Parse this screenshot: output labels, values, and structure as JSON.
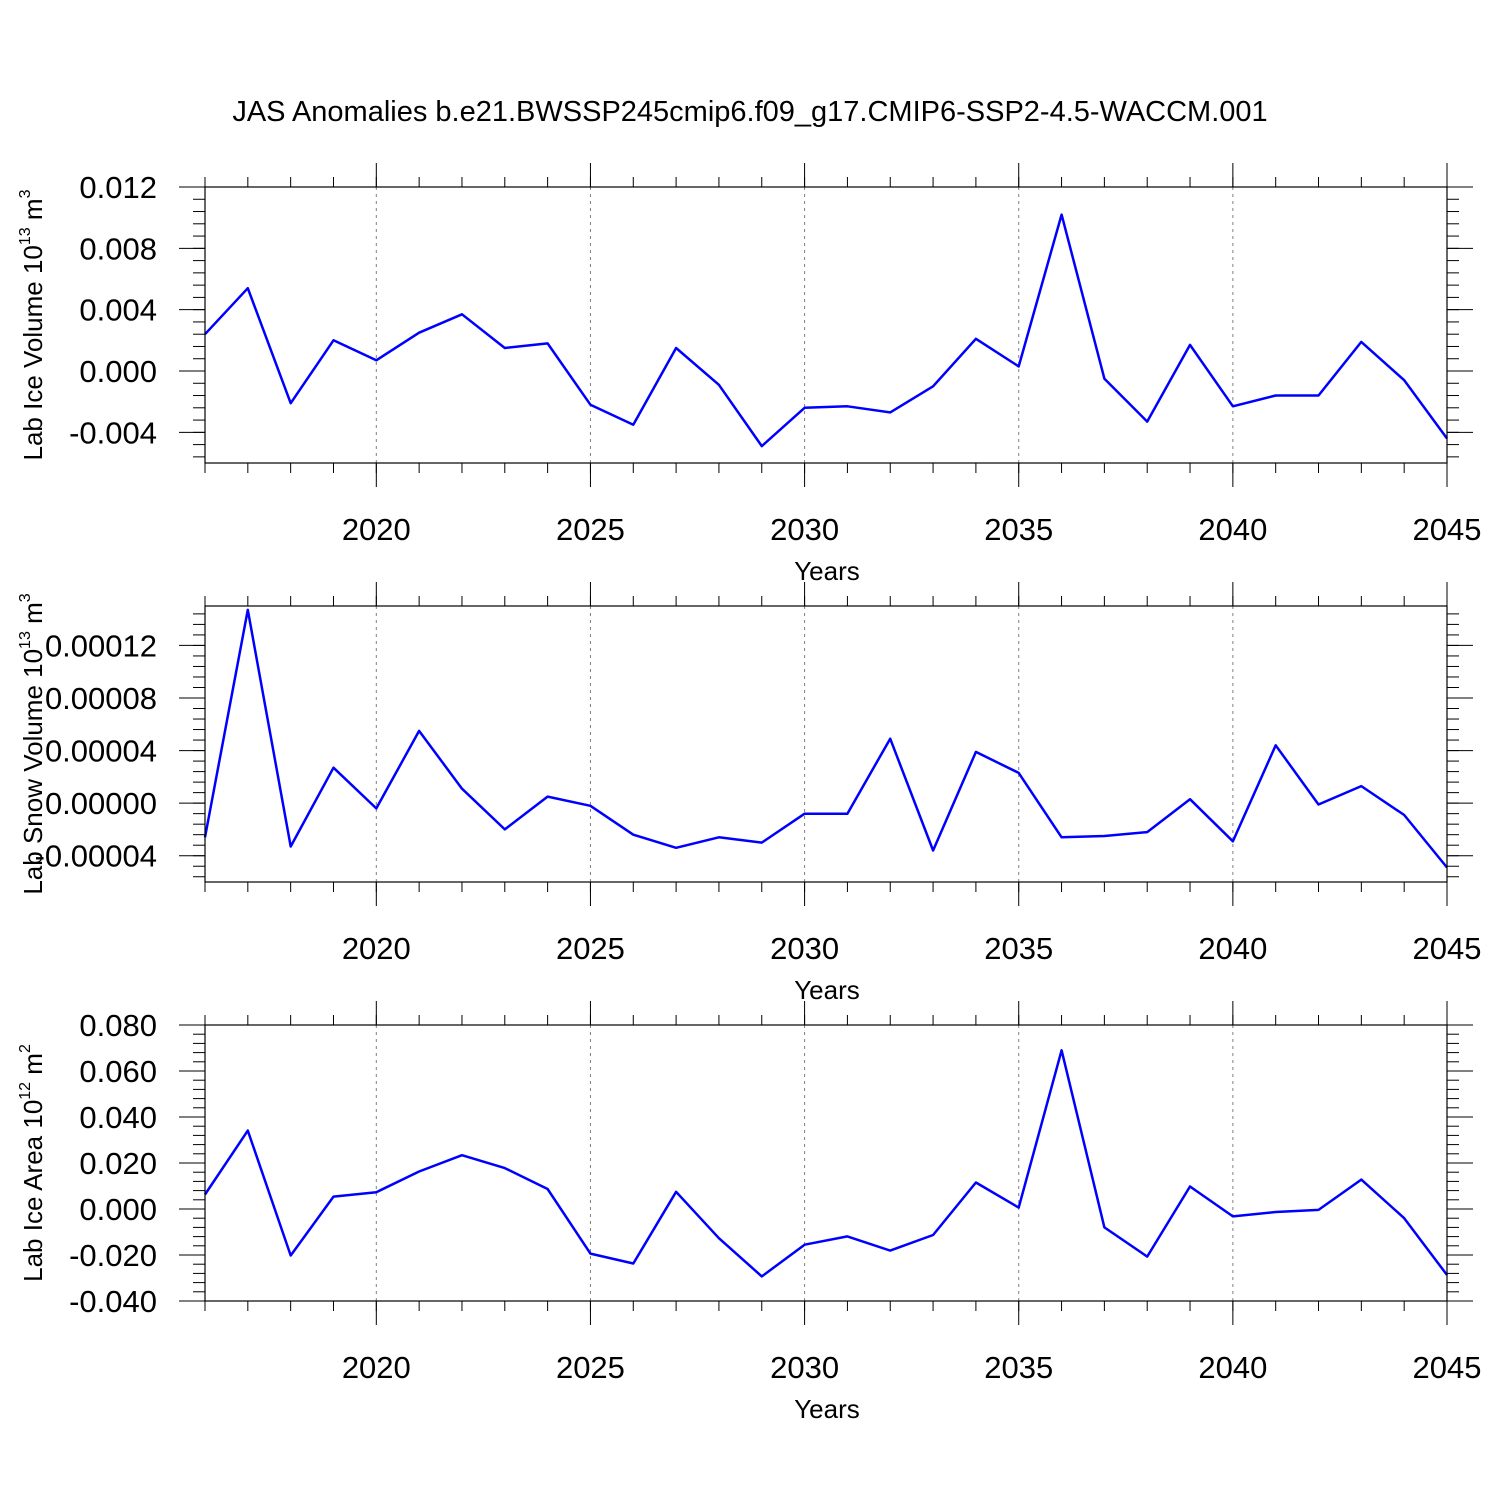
{
  "title": "JAS Anomalies b.e21.BWSSP245cmip6.f09_g17.CMIP6-SSP2-4.5-WACCM.001",
  "colors": {
    "line": "#0000ff",
    "axis": "#000000",
    "grid": "#808080"
  },
  "chart_data": [
    {
      "type": "line",
      "ylabel": "Lab Ice Volume 10",
      "ylabel_exp": "13",
      "ylabel_unit": " m",
      "ylabel_unit_exp": "3",
      "xlabel": "Years",
      "xlim": [
        2016,
        2045
      ],
      "ylim": [
        -0.006,
        0.012
      ],
      "yticks": [
        0.012,
        0.008,
        0.004,
        0.0,
        -0.004
      ],
      "ytick_labels": [
        "0.012",
        "0.008",
        "0.004",
        "0.000",
        "-0.004"
      ],
      "xticks": [
        2020,
        2025,
        2030,
        2035,
        2040,
        2045
      ],
      "xtick_labels": [
        "2020",
        "2025",
        "2030",
        "2035",
        "2040",
        "2045"
      ],
      "grid": "vertical dashed at major x ticks",
      "x": [
        2016,
        2017,
        2018,
        2019,
        2020,
        2021,
        2022,
        2023,
        2024,
        2025,
        2026,
        2027,
        2028,
        2029,
        2030,
        2031,
        2032,
        2033,
        2034,
        2035,
        2036,
        2037,
        2038,
        2039,
        2040,
        2041,
        2042,
        2043,
        2044,
        2045
      ],
      "values": [
        0.0024,
        0.0054,
        -0.0021,
        0.002,
        0.0007,
        0.0025,
        0.0037,
        0.0015,
        0.0018,
        -0.0022,
        -0.0035,
        0.0015,
        -0.0009,
        -0.0049,
        -0.0024,
        -0.0023,
        -0.0027,
        -0.001,
        0.0021,
        0.0003,
        0.0102,
        -0.0005,
        -0.0033,
        0.0017,
        -0.0023,
        -0.0016,
        -0.0016,
        0.0019,
        -0.0006,
        -0.0044
      ]
    },
    {
      "type": "line",
      "ylabel": "Lab Snow Volume 10",
      "ylabel_exp": "13",
      "ylabel_unit": " m",
      "ylabel_unit_exp": "3",
      "xlabel": "Years",
      "xlim": [
        2016,
        2045
      ],
      "ylim": [
        -6e-05,
        0.00015
      ],
      "yticks": [
        0.00012,
        8e-05,
        4e-05,
        0.0,
        -4e-05
      ],
      "ytick_labels": [
        "0.00012",
        "0.00008",
        "0.00004",
        "0.00000",
        "-0.00004"
      ],
      "xticks": [
        2020,
        2025,
        2030,
        2035,
        2040,
        2045
      ],
      "xtick_labels": [
        "2020",
        "2025",
        "2030",
        "2035",
        "2040",
        "2045"
      ],
      "grid": "vertical dashed at major x ticks",
      "x": [
        2016,
        2017,
        2018,
        2019,
        2020,
        2021,
        2022,
        2023,
        2024,
        2025,
        2026,
        2027,
        2028,
        2029,
        2030,
        2031,
        2032,
        2033,
        2034,
        2035,
        2036,
        2037,
        2038,
        2039,
        2040,
        2041,
        2042,
        2043,
        2044,
        2045
      ],
      "values": [
        -2.6e-05,
        0.000147,
        -3.3e-05,
        2.7e-05,
        -4e-06,
        5.5e-05,
        1.1e-05,
        -2e-05,
        5e-06,
        -2e-06,
        -2.4e-05,
        -3.4e-05,
        -2.6e-05,
        -3e-05,
        -8e-06,
        -8e-06,
        4.9e-05,
        -3.6e-05,
        3.9e-05,
        2.3e-05,
        -2.6e-05,
        -2.5e-05,
        -2.2e-05,
        3e-06,
        -2.9e-05,
        4.4e-05,
        -1e-06,
        1.3e-05,
        -9e-06,
        -4.9e-05
      ]
    },
    {
      "type": "line",
      "ylabel": "Lab Ice Area 10",
      "ylabel_exp": "12",
      "ylabel_unit": " m",
      "ylabel_unit_exp": "2",
      "xlabel": "Years",
      "xlim": [
        2016,
        2045
      ],
      "ylim": [
        -0.04,
        0.08
      ],
      "yticks": [
        0.08,
        0.06,
        0.04,
        0.02,
        0.0,
        -0.02,
        -0.04
      ],
      "ytick_labels": [
        "0.080",
        "0.060",
        "0.040",
        "0.020",
        "0.000",
        "-0.020",
        "-0.040"
      ],
      "xticks": [
        2020,
        2025,
        2030,
        2035,
        2040,
        2045
      ],
      "xtick_labels": [
        "2020",
        "2025",
        "2030",
        "2035",
        "2040",
        "2045"
      ],
      "grid": "vertical dashed at major x ticks",
      "x": [
        2016,
        2017,
        2018,
        2019,
        2020,
        2021,
        2022,
        2023,
        2024,
        2025,
        2026,
        2027,
        2028,
        2029,
        2030,
        2031,
        2032,
        2033,
        2034,
        2035,
        2036,
        2037,
        2038,
        2039,
        2040,
        2041,
        2042,
        2043,
        2044,
        2045
      ],
      "values": [
        0.0063,
        0.0341,
        -0.0202,
        0.0054,
        0.0073,
        0.0163,
        0.0234,
        0.0178,
        0.0087,
        -0.0194,
        -0.0237,
        0.0075,
        -0.0127,
        -0.0293,
        -0.0155,
        -0.0119,
        -0.0181,
        -0.0113,
        0.0115,
        0.0006,
        0.069,
        -0.008,
        -0.0207,
        0.0098,
        -0.0032,
        -0.0013,
        -0.0004,
        0.0128,
        -0.004,
        -0.0287
      ]
    }
  ]
}
